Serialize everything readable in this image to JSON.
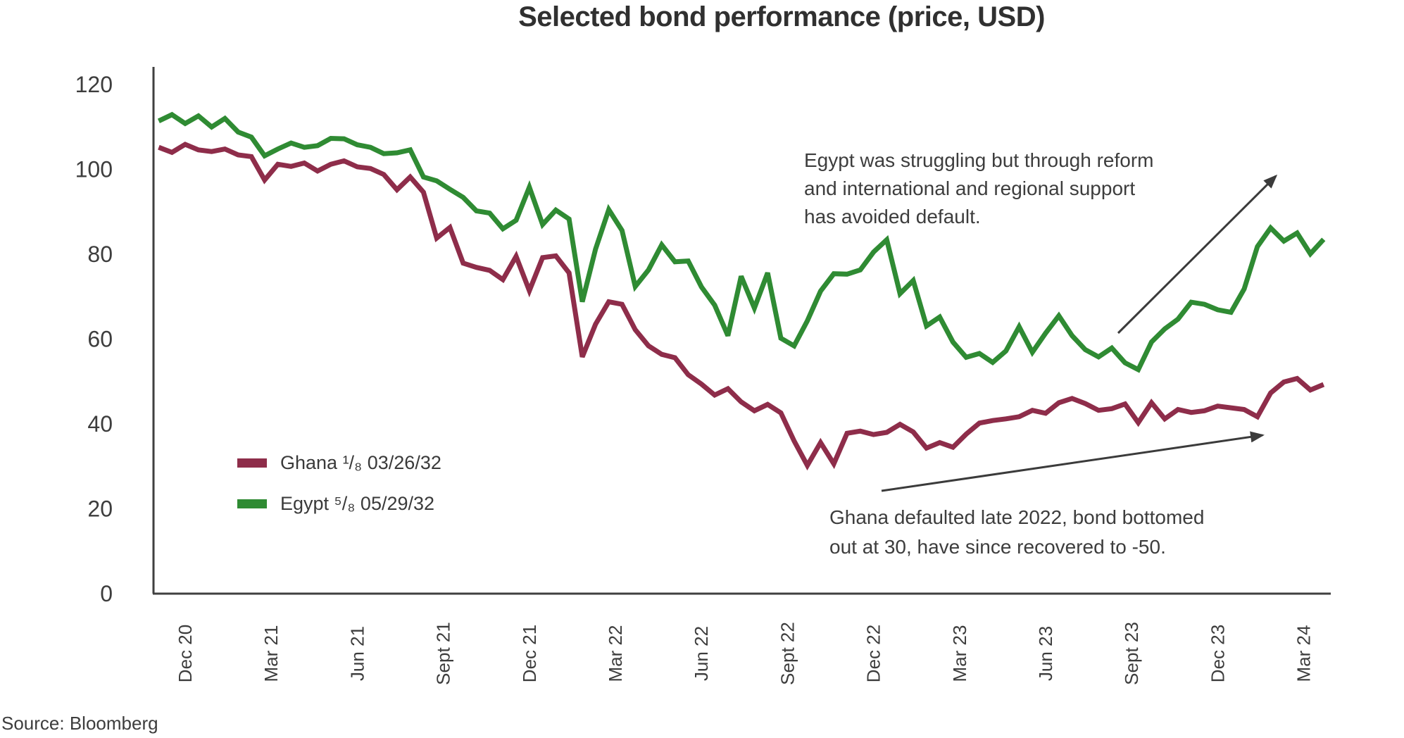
{
  "title": "Selected bond performance (price, USD)",
  "source": "Source: Bloomberg",
  "legend": [
    {
      "label": "Ghana ¹/₈ 03/26/32",
      "color": "#8E2D4A"
    },
    {
      "label": "Egypt ⁵/₈ 05/29/32",
      "color": "#2F8B33"
    }
  ],
  "annotations": {
    "egypt": {
      "lines": [
        "Egypt was struggling but through reform",
        "and international and regional support",
        "has avoided default."
      ]
    },
    "ghana": {
      "lines": [
        "Ghana defaulted late 2022, bond bottomed",
        "out at 30, have since recovered to -50."
      ]
    }
  },
  "chart_data": {
    "type": "line",
    "title": "Selected bond performance (price, USD)",
    "xlabel": "",
    "ylabel": "",
    "ylim": [
      0,
      120
    ],
    "grid": false,
    "legend_position": "center-left",
    "y_ticks": [
      0,
      20,
      40,
      60,
      80,
      100,
      120
    ],
    "x_ticks": [
      "Dec 20",
      "Mar 21",
      "Jun 21",
      "Sept 21",
      "Dec 21",
      "Mar 22",
      "Jun 22",
      "Sept 22",
      "Dec 22",
      "Mar 23",
      "Jun 23",
      "Sept 23",
      "Dec 23",
      "Mar 24"
    ],
    "x_unit": "weeks since start (points are biweekly)",
    "weeks_per_point": 2,
    "tick_start_week": 4,
    "tick_interval_weeks": 13,
    "series": [
      {
        "name": "Ghana 1/8 03/26/32",
        "color": "#8E2D4A",
        "values": [
          105.2,
          104.0,
          105.9,
          104.6,
          104.2,
          104.8,
          103.4,
          103.0,
          97.5,
          101.2,
          100.7,
          101.5,
          99.6,
          101.2,
          102.0,
          100.6,
          100.2,
          98.8,
          95.2,
          98.2,
          94.6,
          83.8,
          86.3,
          77.9,
          76.9,
          76.2,
          74.0,
          79.5,
          71.4,
          79.2,
          79.6,
          75.6,
          55.8,
          63.5,
          68.8,
          68.2,
          62.2,
          58.4,
          56.4,
          55.6,
          51.6,
          49.4,
          46.8,
          48.3,
          45.2,
          43.1,
          44.6,
          42.6,
          36.0,
          30.2,
          35.6,
          30.6,
          37.8,
          38.3,
          37.5,
          38.0,
          39.9,
          38.1,
          34.3,
          35.6,
          34.5,
          37.6,
          40.2,
          40.8,
          41.2,
          41.7,
          43.2,
          42.5,
          45.0,
          46.0,
          44.8,
          43.2,
          43.6,
          44.7,
          40.3,
          45.0,
          41.2,
          43.4,
          42.7,
          43.1,
          44.2,
          43.8,
          43.4,
          41.7,
          47.3,
          49.9,
          50.7,
          48.0,
          49.3
        ]
      },
      {
        "name": "Egypt 5/8 05/29/32",
        "color": "#2F8B33",
        "values": [
          111.4,
          112.9,
          110.8,
          112.6,
          110.0,
          112.0,
          108.8,
          107.6,
          103.2,
          104.8,
          106.2,
          105.2,
          105.6,
          107.3,
          107.2,
          105.8,
          105.2,
          103.7,
          103.9,
          104.6,
          98.2,
          97.3,
          95.3,
          93.4,
          90.2,
          89.7,
          86.0,
          88.0,
          95.8,
          87.0,
          90.4,
          88.3,
          68.8,
          81.2,
          90.5,
          85.6,
          72.4,
          76.3,
          82.2,
          78.2,
          78.4,
          72.3,
          68.0,
          60.8,
          74.8,
          67.3,
          75.6,
          60.2,
          58.4,
          64.3,
          71.3,
          75.4,
          75.3,
          76.3,
          80.5,
          83.4,
          70.7,
          73.8,
          63.1,
          65.2,
          59.3,
          55.7,
          56.6,
          54.5,
          57.2,
          62.9,
          56.9,
          61.4,
          65.5,
          60.8,
          57.5,
          55.8,
          57.9,
          54.4,
          52.8,
          59.3,
          62.4,
          64.7,
          68.7,
          68.2,
          66.9,
          66.3,
          71.8,
          81.8,
          86.2,
          83.1,
          85.0,
          80.1,
          83.5
        ]
      }
    ]
  }
}
